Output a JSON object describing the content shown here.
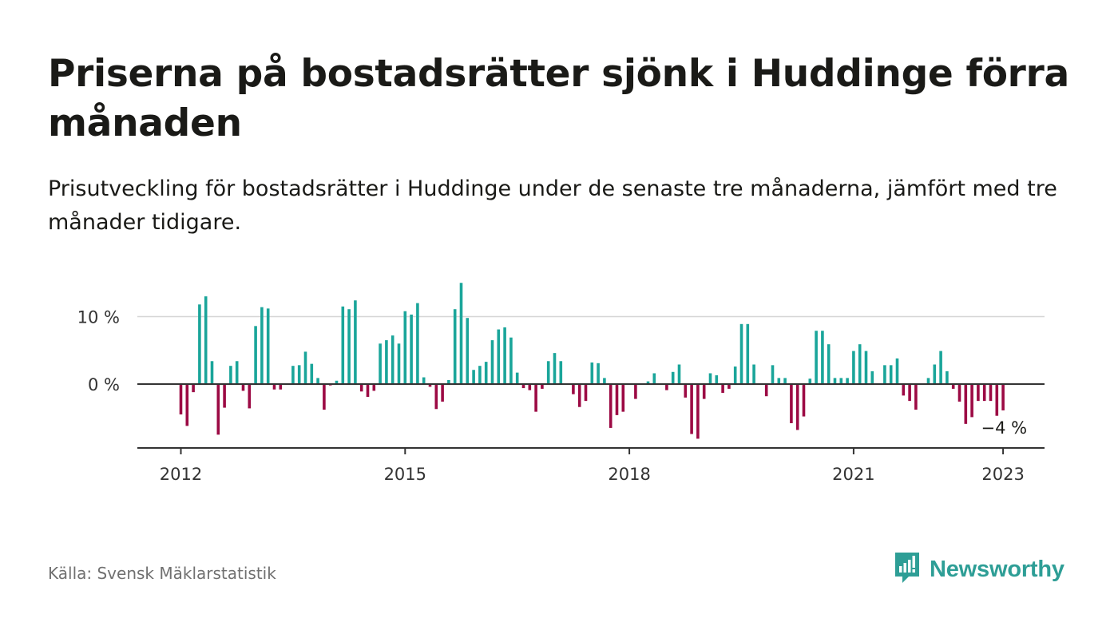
{
  "title": "Priserna på bostadsrätter sjönk i Huddinge förra månaden",
  "subtitle": "Prisutveckling för bostadsrätter i Huddinge under de senaste tre månaderna, jämfört med tre månader tidigare.",
  "source": "Källa: Svensk Mäklarstatistik",
  "brand": {
    "name": "Newsworthy",
    "icon": "newsworthy-logo-icon",
    "color": "#2e9e96"
  },
  "colors": {
    "positive": "#1aa59a",
    "negative": "#9c0a44",
    "grid": "#d6d6d6",
    "axis": "#333333"
  },
  "chart_data": {
    "type": "bar",
    "title": "",
    "xlabel": "",
    "ylabel": "",
    "ylim": [
      -10,
      15
    ],
    "yticks": [
      {
        "value": 0,
        "label": "0 %"
      },
      {
        "value": 10,
        "label": "10 %"
      }
    ],
    "xticks": [
      {
        "value": "2012-01",
        "label": "2012"
      },
      {
        "value": "2015-01",
        "label": "2015"
      },
      {
        "value": "2018-01",
        "label": "2018"
      },
      {
        "value": "2021-01",
        "label": "2021"
      },
      {
        "value": "2023-01",
        "label": "2023"
      }
    ],
    "start_month": "2012-01",
    "values": [
      -4.5,
      -6.2,
      -1.2,
      11.8,
      13.0,
      3.4,
      -7.5,
      -3.5,
      2.7,
      3.4,
      -1.0,
      -3.6,
      8.6,
      11.4,
      11.2,
      -0.8,
      -0.8,
      0,
      2.7,
      2.8,
      4.8,
      3.0,
      0.9,
      -3.8,
      -0.2,
      0.5,
      11.5,
      11.1,
      12.4,
      -1.1,
      -1.9,
      -1.0,
      6.0,
      6.5,
      7.2,
      6.0,
      10.8,
      10.3,
      12.0,
      1.0,
      -0.4,
      -3.7,
      -2.6,
      0.6,
      11.1,
      15.0,
      9.8,
      2.1,
      2.7,
      3.3,
      6.5,
      8.1,
      8.4,
      6.9,
      1.7,
      -0.6,
      -0.9,
      -4.1,
      -0.7,
      3.4,
      4.6,
      3.4,
      0,
      -1.5,
      -3.4,
      -2.5,
      3.2,
      3.1,
      0.9,
      -6.5,
      -4.6,
      -4.1,
      0,
      -2.2,
      0,
      0.4,
      1.6,
      0,
      -0.9,
      1.8,
      2.9,
      -2.0,
      -7.4,
      -8.1,
      -2.2,
      1.6,
      1.3,
      -1.3,
      -0.7,
      2.6,
      8.9,
      8.9,
      2.9,
      0,
      -1.8,
      2.8,
      0.9,
      0.9,
      -5.8,
      -6.8,
      -4.8,
      0.8,
      7.9,
      7.9,
      5.9,
      0.9,
      0.9,
      0.9,
      4.9,
      5.9,
      4.9,
      1.9,
      0,
      2.8,
      2.8,
      3.8,
      -1.7,
      -2.5,
      -3.8,
      0,
      0.9,
      2.9,
      4.9,
      1.9,
      -0.7,
      -2.6,
      -5.9,
      -4.9,
      -2.5,
      -2.5,
      -2.5,
      -4.7,
      -3.9
    ],
    "last_value_label": "−4 %"
  }
}
